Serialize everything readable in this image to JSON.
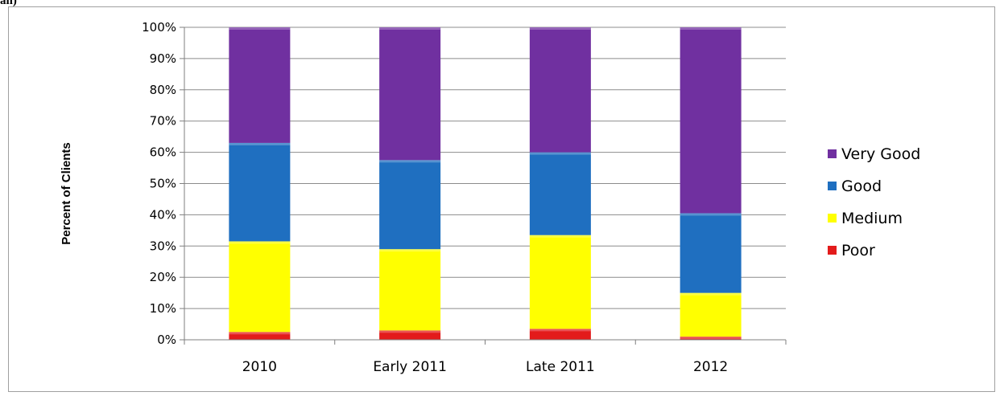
{
  "corner_text": "an)",
  "colors": {
    "very_good": "#7030a0",
    "good": "#1f6fc0",
    "medium": "#ffff00",
    "poor": "#e31b1b",
    "grid": "#8c8c8c",
    "axis": "#7f7f7f",
    "text": "#000000"
  },
  "chart_data": {
    "type": "bar",
    "stacked": true,
    "percent_stacked": true,
    "title": "",
    "xlabel": "",
    "ylabel": "Percent of Clients",
    "categories": [
      "2010",
      "Early 2011",
      "Late 2011",
      "2012"
    ],
    "y_tick_labels": [
      "0%",
      "10%",
      "20%",
      "30%",
      "40%",
      "50%",
      "60%",
      "70%",
      "80%",
      "90%",
      "100%"
    ],
    "ylim": [
      0,
      100
    ],
    "grid": true,
    "legend_position": "right",
    "legend_entries": [
      "Very Good",
      "Good",
      "Medium",
      "Poor"
    ],
    "series": [
      {
        "name": "Poor",
        "values": [
          2.5,
          3,
          3.5,
          1
        ],
        "color": "#e31b1b"
      },
      {
        "name": "Medium",
        "values": [
          29,
          26,
          30,
          14
        ],
        "color": "#ffff00"
      },
      {
        "name": "Good",
        "values": [
          31.5,
          28.5,
          26.5,
          25.5
        ],
        "color": "#1f6fc0"
      },
      {
        "name": "Very Good",
        "values": [
          37,
          42.5,
          40,
          59.5
        ],
        "color": "#7030a0"
      }
    ]
  }
}
